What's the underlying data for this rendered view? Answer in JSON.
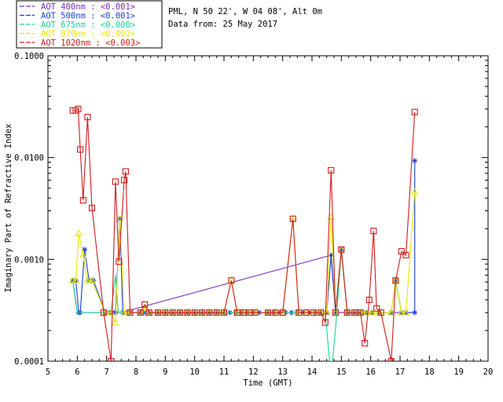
{
  "chart_data": {
    "type": "line",
    "title_lines": [
      "PML, N 50 22', W 04 08', Alt 0m",
      "Data from: 25 May 2017"
    ],
    "xlabel": "Time (GMT)",
    "ylabel": "Imaginary Part of Refractive Index",
    "xlim": [
      5,
      20
    ],
    "ylim": [
      0.0001,
      0.1
    ],
    "yscale": "log",
    "x_ticks": [
      "5",
      "6",
      "7",
      "8",
      "9",
      "10",
      "11",
      "12",
      "13",
      "14",
      "15",
      "16",
      "17",
      "18",
      "19",
      "20"
    ],
    "y_ticks": [
      {
        "value": 0.0001,
        "label": "0.0001"
      },
      {
        "value": 0.001,
        "label": "0.0010"
      },
      {
        "value": 0.01,
        "label": "0.0100"
      },
      {
        "value": 0.1,
        "label": "0.1000"
      }
    ],
    "legend": [
      {
        "label": "AOT  400nm : <0.001>",
        "color": "#7b2fbe"
      },
      {
        "label": "AOT  500nm : <0.001>",
        "color": "#1a3fd0"
      },
      {
        "label": "AOT  675nm : <0.000>",
        "color": "#1ecf9a"
      },
      {
        "label": "AOT  870nm : <0.001>",
        "color": "#e8e800"
      },
      {
        "label": "AOT 1020nm : <0.003>",
        "color": "#d01c1c"
      }
    ],
    "series": [
      {
        "name": "AOT 400nm",
        "color": "#7b2fbe",
        "marker": "none",
        "points": [
          [
            5.85,
            0.00062
          ],
          [
            6.0,
            0.0003
          ],
          [
            6.15,
            0.0003
          ],
          [
            7.3,
            0.0003
          ],
          [
            7.5,
            0.0003
          ],
          [
            14.65,
            0.0011
          ],
          [
            14.8,
            0.0003
          ],
          [
            17.5,
            0.0003
          ]
        ]
      },
      {
        "name": "AOT 500nm",
        "color": "#1a3fd0",
        "marker": "asterisk",
        "points": [
          [
            5.85,
            0.00062
          ],
          [
            5.95,
            0.00062
          ],
          [
            6.05,
            0.0003
          ],
          [
            6.1,
            0.0003
          ],
          [
            6.25,
            0.00125
          ],
          [
            6.4,
            0.00062
          ],
          [
            6.55,
            0.00062
          ],
          [
            6.95,
            0.0003
          ],
          [
            7.1,
            0.0003
          ],
          [
            7.2,
            0.0003
          ],
          [
            7.3,
            0.0003
          ],
          [
            7.45,
            0.0025
          ],
          [
            7.55,
            0.0003
          ],
          [
            7.8,
            0.0003
          ],
          [
            8.15,
            0.0003
          ],
          [
            8.3,
            0.0003
          ],
          [
            8.45,
            0.0003
          ],
          [
            8.75,
            0.0003
          ],
          [
            9.0,
            0.0003
          ],
          [
            9.25,
            0.0003
          ],
          [
            9.5,
            0.0003
          ],
          [
            9.75,
            0.0003
          ],
          [
            10.0,
            0.0003
          ],
          [
            10.25,
            0.0003
          ],
          [
            10.5,
            0.0003
          ],
          [
            10.75,
            0.0003
          ],
          [
            11.0,
            0.0003
          ],
          [
            11.2,
            0.0003
          ],
          [
            11.4,
            0.0003
          ],
          [
            11.6,
            0.0003
          ],
          [
            11.8,
            0.0003
          ],
          [
            12.0,
            0.0003
          ],
          [
            12.2,
            0.0003
          ],
          [
            12.5,
            0.0003
          ],
          [
            12.7,
            0.0003
          ],
          [
            12.9,
            0.0003
          ],
          [
            13.1,
            0.0003
          ],
          [
            13.3,
            0.0003
          ],
          [
            13.5,
            0.0003
          ],
          [
            13.7,
            0.0003
          ],
          [
            13.9,
            0.0003
          ],
          [
            14.1,
            0.0003
          ],
          [
            14.3,
            0.0003
          ],
          [
            14.5,
            0.0003
          ],
          [
            14.65,
            0.0011
          ],
          [
            14.8,
            0.0003
          ],
          [
            15.0,
            0.00125
          ],
          [
            15.2,
            0.0003
          ],
          [
            15.45,
            0.0003
          ],
          [
            15.65,
            0.0003
          ],
          [
            15.85,
            0.0003
          ],
          [
            16.05,
            0.0003
          ],
          [
            16.3,
            0.0003
          ],
          [
            16.7,
            0.0003
          ],
          [
            16.85,
            0.00062
          ],
          [
            17.05,
            0.0003
          ],
          [
            17.2,
            0.0003
          ],
          [
            17.5,
            0.0003
          ],
          [
            17.5,
            0.0093
          ]
        ]
      },
      {
        "name": "AOT 675nm",
        "color": "#1ecf9a",
        "marker": "none",
        "points": [
          [
            5.85,
            0.00062
          ],
          [
            6.0,
            0.0003
          ],
          [
            7.15,
            0.0003
          ],
          [
            7.3,
            0.0007
          ],
          [
            7.4,
            0.0003
          ],
          [
            14.45,
            0.0003
          ],
          [
            14.6,
            0.0001
          ],
          [
            14.7,
            0.0001
          ],
          [
            14.85,
            0.0003
          ],
          [
            15.0,
            0.00125
          ],
          [
            15.2,
            0.0003
          ],
          [
            16.7,
            0.0003
          ],
          [
            16.85,
            0.00062
          ],
          [
            17.05,
            0.0003
          ]
        ]
      },
      {
        "name": "AOT 870nm",
        "color": "#e8e800",
        "marker": "triangle",
        "points": [
          [
            5.85,
            0.00062
          ],
          [
            5.95,
            0.00062
          ],
          [
            6.05,
            0.0018
          ],
          [
            6.2,
            0.0011
          ],
          [
            6.35,
            0.00062
          ],
          [
            6.5,
            0.00062
          ],
          [
            6.95,
            0.0003
          ],
          [
            7.15,
            0.0003
          ],
          [
            7.3,
            0.00024
          ],
          [
            7.45,
            0.0025
          ],
          [
            7.6,
            0.0003
          ],
          [
            7.75,
            0.0003
          ],
          [
            8.15,
            0.0003
          ],
          [
            8.3,
            0.00033
          ],
          [
            8.45,
            0.0003
          ],
          [
            8.75,
            0.0003
          ],
          [
            9.0,
            0.0003
          ],
          [
            9.25,
            0.0003
          ],
          [
            9.5,
            0.0003
          ],
          [
            9.75,
            0.0003
          ],
          [
            10.0,
            0.0003
          ],
          [
            10.25,
            0.0003
          ],
          [
            10.5,
            0.0003
          ],
          [
            10.75,
            0.0003
          ],
          [
            11.0,
            0.0003
          ],
          [
            11.25,
            0.00062
          ],
          [
            11.45,
            0.0003
          ],
          [
            11.65,
            0.0003
          ],
          [
            11.85,
            0.0003
          ],
          [
            12.05,
            0.0003
          ],
          [
            12.5,
            0.0003
          ],
          [
            12.75,
            0.0003
          ],
          [
            13.0,
            0.0003
          ],
          [
            13.35,
            0.0025
          ],
          [
            13.55,
            0.0003
          ],
          [
            13.8,
            0.0003
          ],
          [
            14.05,
            0.0003
          ],
          [
            14.3,
            0.0003
          ],
          [
            14.5,
            0.0003
          ],
          [
            14.65,
            0.0026
          ],
          [
            14.8,
            0.0003
          ],
          [
            15.0,
            0.00125
          ],
          [
            15.2,
            0.0003
          ],
          [
            15.45,
            0.0003
          ],
          [
            15.65,
            0.0003
          ],
          [
            15.85,
            0.0003
          ],
          [
            16.05,
            0.0003
          ],
          [
            16.3,
            0.0003
          ],
          [
            16.7,
            0.0003
          ],
          [
            16.85,
            0.00062
          ],
          [
            17.05,
            0.0003
          ],
          [
            17.2,
            0.0003
          ],
          [
            17.5,
            0.0046
          ]
        ]
      },
      {
        "name": "AOT 1020nm",
        "color": "#d01c1c",
        "marker": "square",
        "points": [
          [
            5.85,
            0.029
          ],
          [
            5.95,
            0.029
          ],
          [
            6.03,
            0.03
          ],
          [
            6.1,
            0.012
          ],
          [
            6.2,
            0.0038
          ],
          [
            6.35,
            0.025
          ],
          [
            6.5,
            0.0032
          ],
          [
            6.9,
            0.0003
          ],
          [
            7.15,
            0.0001
          ],
          [
            7.3,
            0.0058
          ],
          [
            7.42,
            0.00095
          ],
          [
            7.6,
            0.006
          ],
          [
            7.65,
            0.0073
          ],
          [
            7.8,
            0.0003
          ],
          [
            8.15,
            0.0003
          ],
          [
            8.3,
            0.00036
          ],
          [
            8.45,
            0.0003
          ],
          [
            8.75,
            0.0003
          ],
          [
            9.0,
            0.0003
          ],
          [
            9.25,
            0.0003
          ],
          [
            9.5,
            0.0003
          ],
          [
            9.75,
            0.0003
          ],
          [
            10.0,
            0.0003
          ],
          [
            10.25,
            0.0003
          ],
          [
            10.5,
            0.0003
          ],
          [
            10.75,
            0.0003
          ],
          [
            11.0,
            0.0003
          ],
          [
            11.25,
            0.00062
          ],
          [
            11.45,
            0.0003
          ],
          [
            11.65,
            0.0003
          ],
          [
            11.85,
            0.0003
          ],
          [
            12.05,
            0.0003
          ],
          [
            12.5,
            0.0003
          ],
          [
            12.75,
            0.0003
          ],
          [
            13.0,
            0.0003
          ],
          [
            13.35,
            0.0025
          ],
          [
            13.55,
            0.0003
          ],
          [
            13.8,
            0.0003
          ],
          [
            14.05,
            0.0003
          ],
          [
            14.3,
            0.0003
          ],
          [
            14.45,
            0.00024
          ],
          [
            14.65,
            0.0075
          ],
          [
            14.8,
            0.0003
          ],
          [
            15.0,
            0.00125
          ],
          [
            15.2,
            0.0003
          ],
          [
            15.45,
            0.0003
          ],
          [
            15.65,
            0.0003
          ],
          [
            15.8,
            0.00015
          ],
          [
            15.95,
            0.0004
          ],
          [
            16.1,
            0.0019
          ],
          [
            16.2,
            0.00033
          ],
          [
            16.35,
            0.0003
          ],
          [
            16.7,
            0.0001
          ],
          [
            16.85,
            0.00062
          ],
          [
            17.05,
            0.0012
          ],
          [
            17.2,
            0.0011
          ],
          [
            17.5,
            0.028
          ]
        ]
      }
    ]
  }
}
